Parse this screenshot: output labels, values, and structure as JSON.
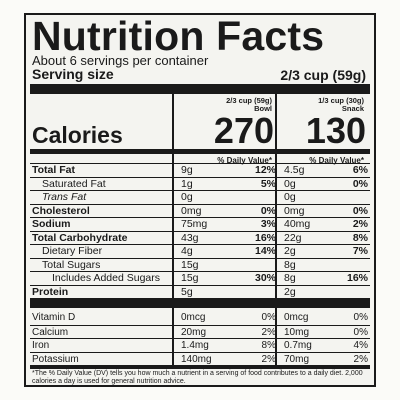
{
  "title": "Nutrition Facts",
  "servings": "About 6 servings per container",
  "serving_size": {
    "label": "Serving size",
    "value": "2/3 cup (59g)"
  },
  "columns": [
    {
      "line1": "2/3 cup (59g)",
      "line2": "Bowl"
    },
    {
      "line1": "1/3 cup (30g)",
      "line2": "Snack"
    }
  ],
  "calories": {
    "label": "Calories",
    "values": [
      "270",
      "130"
    ]
  },
  "dv_header": "% Daily Value*",
  "nutrients": [
    {
      "label": "Total Fat",
      "style": "bold",
      "amt1": "9g",
      "dv1": "12%",
      "amt2": "4.5g",
      "dv2": "6%"
    },
    {
      "label": "Saturated Fat",
      "style": "ind1",
      "amt1": "1g",
      "dv1": "5%",
      "amt2": "0g",
      "dv2": "0%"
    },
    {
      "label": "Trans Fat",
      "style": "ind1 italic",
      "amt1": "0g",
      "dv1": "",
      "amt2": "0g",
      "dv2": ""
    },
    {
      "label": "Cholesterol",
      "style": "bold",
      "amt1": "0mg",
      "dv1": "0%",
      "amt2": "0mg",
      "dv2": "0%"
    },
    {
      "label": "Sodium",
      "style": "bold",
      "amt1": "75mg",
      "dv1": "3%",
      "amt2": "40mg",
      "dv2": "2%"
    },
    {
      "label": "Total Carbohydrate",
      "style": "bold",
      "amt1": "43g",
      "dv1": "16%",
      "amt2": "22g",
      "dv2": "8%"
    },
    {
      "label": "Dietary Fiber",
      "style": "ind1",
      "amt1": "4g",
      "dv1": "14%",
      "amt2": "2g",
      "dv2": "7%"
    },
    {
      "label": "Total Sugars",
      "style": "ind1",
      "amt1": "15g",
      "dv1": "",
      "amt2": "8g",
      "dv2": ""
    },
    {
      "label": "Includes Added Sugars",
      "style": "ind2",
      "amt1": "15g",
      "dv1": "30%",
      "amt2": "8g",
      "dv2": "16%"
    },
    {
      "label": "Protein",
      "style": "bold",
      "amt1": "5g",
      "dv1": "",
      "amt2": "2g",
      "dv2": ""
    }
  ],
  "vitamins": [
    {
      "label": "Vitamin D",
      "amt1": "0mcg",
      "dv1": "0%",
      "amt2": "0mcg",
      "dv2": "0%"
    },
    {
      "label": "Calcium",
      "amt1": "20mg",
      "dv1": "2%",
      "amt2": "10mg",
      "dv2": "0%"
    },
    {
      "label": "Iron",
      "amt1": "1.4mg",
      "dv1": "8%",
      "amt2": "0.7mg",
      "dv2": "4%"
    },
    {
      "label": "Potassium",
      "amt1": "140mg",
      "dv1": "2%",
      "amt2": "70mg",
      "dv2": "2%"
    }
  ],
  "footnote": "*The % Daily Value (DV) tells you how much a nutrient in a serving of food contributes to a daily diet. 2,000 calories a day is used for general nutrition advice."
}
